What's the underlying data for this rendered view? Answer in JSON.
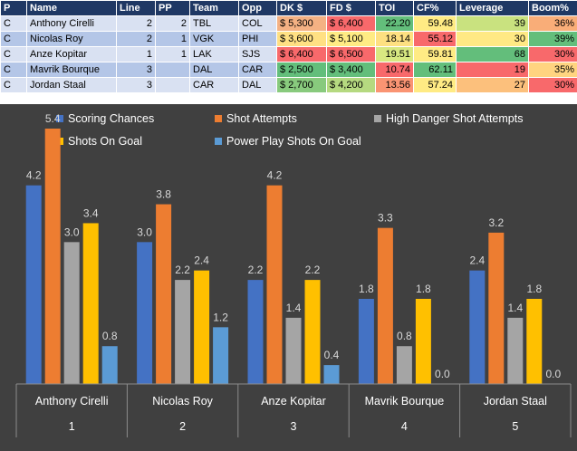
{
  "table": {
    "headers": [
      "P",
      "Name",
      "Line",
      "PP",
      "Team",
      "Opp",
      "DK $",
      "FD $",
      "TOI",
      "CF%",
      "Leverage",
      "Boom%"
    ],
    "rows": [
      {
        "p": "C",
        "name": "Anthony Cirelli",
        "line": "2",
        "pp": "2",
        "team": "TBL",
        "opp": "COL",
        "dk": "$ 5,300",
        "fd": "$ 6,400",
        "toi": "22.20",
        "cf": "59.48",
        "leverage": "39",
        "boom": "36%",
        "colors": {
          "dk": "#f4b183",
          "fd": "#f8696b",
          "toi": "#63be7b",
          "cf": "#ffeb84",
          "leverage": "#c9e27f",
          "boom": "#f9ad78"
        }
      },
      {
        "p": "C",
        "name": "Nicolas Roy",
        "line": "2",
        "pp": "1",
        "team": "VGK",
        "opp": "PHI",
        "dk": "$ 3,600",
        "fd": "$ 5,100",
        "toi": "18.14",
        "cf": "55.12",
        "leverage": "30",
        "boom": "39%",
        "colors": {
          "dk": "#ffe083",
          "fd": "#ffeb84",
          "toi": "#fee081",
          "cf": "#f8696b",
          "leverage": "#ffe984",
          "boom": "#63be7b"
        }
      },
      {
        "p": "C",
        "name": "Anze Kopitar",
        "line": "1",
        "pp": "1",
        "team": "LAK",
        "opp": "SJS",
        "dk": "$ 6,400",
        "fd": "$ 6,500",
        "toi": "19.51",
        "cf": "59.81",
        "leverage": "68",
        "boom": "30%",
        "colors": {
          "dk": "#f8696b",
          "fd": "#f8696b",
          "toi": "#d8e881",
          "cf": "#ffeb84",
          "leverage": "#63be7b",
          "boom": "#f8696b"
        }
      },
      {
        "p": "C",
        "name": "Mavrik Bourque",
        "line": "3",
        "pp": "",
        "team": "DAL",
        "opp": "CAR",
        "dk": "$ 2,500",
        "fd": "$ 3,400",
        "toi": "10.74",
        "cf": "62.11",
        "leverage": "19",
        "boom": "35%",
        "colors": {
          "dk": "#63be7b",
          "fd": "#63be7b",
          "toi": "#f8696b",
          "cf": "#63be7b",
          "leverage": "#f8696b",
          "boom": "#ffd480"
        }
      },
      {
        "p": "C",
        "name": "Jordan Staal",
        "line": "3",
        "pp": "",
        "team": "CAR",
        "opp": "DAL",
        "dk": "$ 2,700",
        "fd": "$ 4,200",
        "toi": "13.56",
        "cf": "57.24",
        "leverage": "27",
        "boom": "30%",
        "colors": {
          "dk": "#88ca7d",
          "fd": "#b5d980",
          "toi": "#fa9473",
          "cf": "#ffeb84",
          "leverage": "#fcc07c",
          "boom": "#f8696b"
        }
      }
    ]
  },
  "chart_data": {
    "type": "bar",
    "categories": [
      {
        "label": "Anthony Cirelli",
        "group": "1"
      },
      {
        "label": "Nicolas Roy",
        "group": "2"
      },
      {
        "label": "Anze Kopitar",
        "group": "3"
      },
      {
        "label": "Mavrik Bourque",
        "group": "4"
      },
      {
        "label": "Jordan Staal",
        "group": "5"
      }
    ],
    "series": [
      {
        "name": "Scoring Chances",
        "color": "#4472c4",
        "values": [
          4.2,
          3.0,
          2.2,
          1.8,
          2.4
        ],
        "labels": [
          "4.2",
          "3.0",
          "2.2",
          "1.8",
          "2.4"
        ]
      },
      {
        "name": "Shot Attempts",
        "color": "#ed7d31",
        "values": [
          5.4,
          3.8,
          4.2,
          3.3,
          3.2
        ],
        "labels": [
          "5.4",
          "3.8",
          "4.2",
          "3.3",
          "3.2"
        ]
      },
      {
        "name": "High Danger Shot Attempts",
        "color": "#a5a5a5",
        "values": [
          3.0,
          2.2,
          1.4,
          0.8,
          1.4
        ],
        "labels": [
          "3.0",
          "2.2",
          "1.4",
          "0.8",
          "1.4"
        ]
      },
      {
        "name": "Shots On Goal",
        "color": "#ffc000",
        "values": [
          3.4,
          2.4,
          2.2,
          1.8,
          1.8
        ],
        "labels": [
          "3.4",
          "2.4",
          "2.2",
          "1.8",
          "1.8"
        ]
      },
      {
        "name": "Power Play Shots On Goal",
        "color": "#5b9bd5",
        "values": [
          0.8,
          1.2,
          0.4,
          0.0,
          0.0
        ],
        "labels": [
          "0.8",
          "1.2",
          "0.4",
          "0.0",
          "0.0"
        ]
      }
    ],
    "title": "",
    "xlabel": "",
    "ylabel": "",
    "ylim": [
      0,
      6
    ],
    "grid": false,
    "legend": "top"
  }
}
